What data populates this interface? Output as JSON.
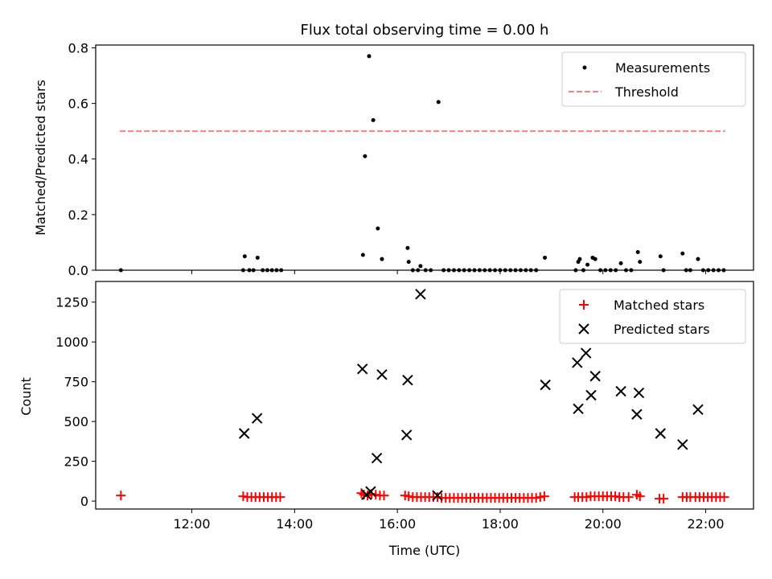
{
  "chart_data": [
    {
      "type": "scatter",
      "title": "Flux total observing time = 0.00 h",
      "xlabel": "",
      "ylabel": "Matched/Predicted stars",
      "xlim": [
        10.13,
        22.93
      ],
      "ylim": [
        0,
        0.81
      ],
      "yticks": [
        0.0,
        0.2,
        0.4,
        0.6,
        0.8
      ],
      "ytick_labels": [
        "0.0",
        "0.2",
        "0.4",
        "0.6",
        "0.8"
      ],
      "legend_position": "upper right",
      "series": [
        {
          "name": "Measurements",
          "marker": "dot",
          "color": "#000000",
          "points": [
            [
              10.62,
              0.0
            ],
            [
              13.0,
              0.0
            ],
            [
              13.03,
              0.05
            ],
            [
              13.12,
              0.0
            ],
            [
              13.2,
              0.0
            ],
            [
              13.28,
              0.045
            ],
            [
              13.38,
              0.0
            ],
            [
              13.47,
              0.0
            ],
            [
              13.56,
              0.0
            ],
            [
              13.65,
              0.0
            ],
            [
              13.74,
              0.0
            ],
            [
              15.33,
              0.055
            ],
            [
              15.37,
              0.41
            ],
            [
              15.45,
              0.77
            ],
            [
              15.53,
              0.54
            ],
            [
              15.62,
              0.15
            ],
            [
              15.7,
              0.04
            ],
            [
              16.2,
              0.08
            ],
            [
              16.22,
              0.03
            ],
            [
              16.3,
              0.0
            ],
            [
              16.4,
              0.0
            ],
            [
              16.45,
              0.015
            ],
            [
              16.55,
              0.0
            ],
            [
              16.65,
              0.0
            ],
            [
              16.8,
              0.605
            ],
            [
              16.9,
              0.0
            ],
            [
              17.0,
              0.0
            ],
            [
              17.1,
              0.0
            ],
            [
              17.2,
              0.0
            ],
            [
              17.3,
              0.0
            ],
            [
              17.4,
              0.0
            ],
            [
              17.5,
              0.0
            ],
            [
              17.6,
              0.0
            ],
            [
              17.7,
              0.0
            ],
            [
              17.8,
              0.0
            ],
            [
              17.9,
              0.0
            ],
            [
              18.0,
              0.0
            ],
            [
              18.1,
              0.0
            ],
            [
              18.2,
              0.0
            ],
            [
              18.3,
              0.0
            ],
            [
              18.4,
              0.0
            ],
            [
              18.5,
              0.0
            ],
            [
              18.6,
              0.0
            ],
            [
              18.7,
              0.0
            ],
            [
              18.87,
              0.045
            ],
            [
              19.47,
              0.0
            ],
            [
              19.52,
              0.03
            ],
            [
              19.55,
              0.04
            ],
            [
              19.62,
              0.0
            ],
            [
              19.7,
              0.02
            ],
            [
              19.8,
              0.045
            ],
            [
              19.85,
              0.04
            ],
            [
              19.95,
              0.0
            ],
            [
              20.05,
              0.0
            ],
            [
              20.15,
              0.0
            ],
            [
              20.25,
              0.0
            ],
            [
              20.35,
              0.025
            ],
            [
              20.45,
              0.0
            ],
            [
              20.55,
              0.0
            ],
            [
              20.68,
              0.065
            ],
            [
              20.72,
              0.03
            ],
            [
              21.12,
              0.05
            ],
            [
              21.18,
              0.0
            ],
            [
              21.55,
              0.06
            ],
            [
              21.62,
              0.0
            ],
            [
              21.7,
              0.0
            ],
            [
              21.85,
              0.04
            ],
            [
              21.95,
              0.0
            ],
            [
              22.05,
              0.0
            ],
            [
              22.15,
              0.0
            ],
            [
              22.25,
              0.0
            ],
            [
              22.35,
              0.0
            ]
          ]
        },
        {
          "name": "Threshold",
          "marker": "dashed-line",
          "color": "#ff7f7f",
          "points": [
            [
              10.6,
              0.5
            ],
            [
              22.38,
              0.5
            ]
          ]
        }
      ]
    },
    {
      "type": "scatter",
      "title": "",
      "xlabel": "Time (UTC)",
      "ylabel": "Count",
      "xlim": [
        10.13,
        22.93
      ],
      "ylim": [
        -50,
        1380
      ],
      "xticks": [
        12,
        14,
        16,
        18,
        20,
        22
      ],
      "xtick_labels": [
        "12:00",
        "14:00",
        "16:00",
        "18:00",
        "20:00",
        "22:00"
      ],
      "yticks": [
        0,
        250,
        500,
        750,
        1000,
        1250
      ],
      "ytick_labels": [
        "0",
        "250",
        "500",
        "750",
        "1000",
        "1250"
      ],
      "legend_position": "upper right",
      "series": [
        {
          "name": "Matched stars",
          "marker": "plus",
          "color": "#ff0000",
          "points": [
            [
              10.62,
              35
            ],
            [
              13.0,
              30
            ],
            [
              13.08,
              25
            ],
            [
              13.16,
              25
            ],
            [
              13.24,
              25
            ],
            [
              13.32,
              25
            ],
            [
              13.4,
              25
            ],
            [
              13.48,
              25
            ],
            [
              13.56,
              25
            ],
            [
              13.64,
              25
            ],
            [
              13.72,
              25
            ],
            [
              15.3,
              50
            ],
            [
              15.35,
              40
            ],
            [
              15.42,
              35
            ],
            [
              15.5,
              45
            ],
            [
              15.58,
              40
            ],
            [
              15.66,
              35
            ],
            [
              15.74,
              35
            ],
            [
              16.15,
              35
            ],
            [
              16.22,
              30
            ],
            [
              16.3,
              25
            ],
            [
              16.38,
              25
            ],
            [
              16.46,
              25
            ],
            [
              16.54,
              25
            ],
            [
              16.62,
              25
            ],
            [
              16.7,
              25
            ],
            [
              16.78,
              25
            ],
            [
              16.86,
              20
            ],
            [
              16.94,
              20
            ],
            [
              17.02,
              20
            ],
            [
              17.1,
              20
            ],
            [
              17.18,
              20
            ],
            [
              17.26,
              20
            ],
            [
              17.34,
              20
            ],
            [
              17.42,
              20
            ],
            [
              17.5,
              20
            ],
            [
              17.58,
              20
            ],
            [
              17.66,
              20
            ],
            [
              17.74,
              20
            ],
            [
              17.82,
              20
            ],
            [
              17.9,
              20
            ],
            [
              17.98,
              20
            ],
            [
              18.06,
              20
            ],
            [
              18.14,
              20
            ],
            [
              18.22,
              20
            ],
            [
              18.3,
              20
            ],
            [
              18.38,
              20
            ],
            [
              18.46,
              20
            ],
            [
              18.54,
              20
            ],
            [
              18.62,
              20
            ],
            [
              18.7,
              20
            ],
            [
              18.78,
              25
            ],
            [
              18.86,
              30
            ],
            [
              19.45,
              25
            ],
            [
              19.52,
              25
            ],
            [
              19.6,
              25
            ],
            [
              19.68,
              25
            ],
            [
              19.76,
              30
            ],
            [
              19.84,
              30
            ],
            [
              19.92,
              30
            ],
            [
              20.0,
              30
            ],
            [
              20.08,
              30
            ],
            [
              20.16,
              30
            ],
            [
              20.24,
              30
            ],
            [
              20.32,
              25
            ],
            [
              20.4,
              25
            ],
            [
              20.5,
              25
            ],
            [
              20.66,
              40
            ],
            [
              20.72,
              30
            ],
            [
              21.1,
              15
            ],
            [
              21.18,
              15
            ],
            [
              21.55,
              25
            ],
            [
              21.63,
              25
            ],
            [
              21.7,
              25
            ],
            [
              21.8,
              25
            ],
            [
              21.88,
              25
            ],
            [
              21.96,
              25
            ],
            [
              22.04,
              25
            ],
            [
              22.12,
              25
            ],
            [
              22.2,
              25
            ],
            [
              22.28,
              25
            ],
            [
              22.36,
              25
            ]
          ]
        },
        {
          "name": "Predicted stars",
          "marker": "x",
          "color": "#000000",
          "points": [
            [
              13.02,
              425
            ],
            [
              13.27,
              520
            ],
            [
              15.32,
              830
            ],
            [
              15.4,
              40
            ],
            [
              15.48,
              60
            ],
            [
              15.6,
              270
            ],
            [
              15.7,
              795
            ],
            [
              16.18,
              415
            ],
            [
              16.2,
              760
            ],
            [
              16.45,
              1300
            ],
            [
              16.78,
              35
            ],
            [
              18.88,
              730
            ],
            [
              19.5,
              870
            ],
            [
              19.52,
              580
            ],
            [
              19.67,
              930
            ],
            [
              19.77,
              665
            ],
            [
              19.85,
              785
            ],
            [
              20.35,
              690
            ],
            [
              20.66,
              545
            ],
            [
              20.7,
              680
            ],
            [
              21.12,
              425
            ],
            [
              21.55,
              355
            ],
            [
              21.85,
              575
            ]
          ]
        }
      ]
    }
  ]
}
